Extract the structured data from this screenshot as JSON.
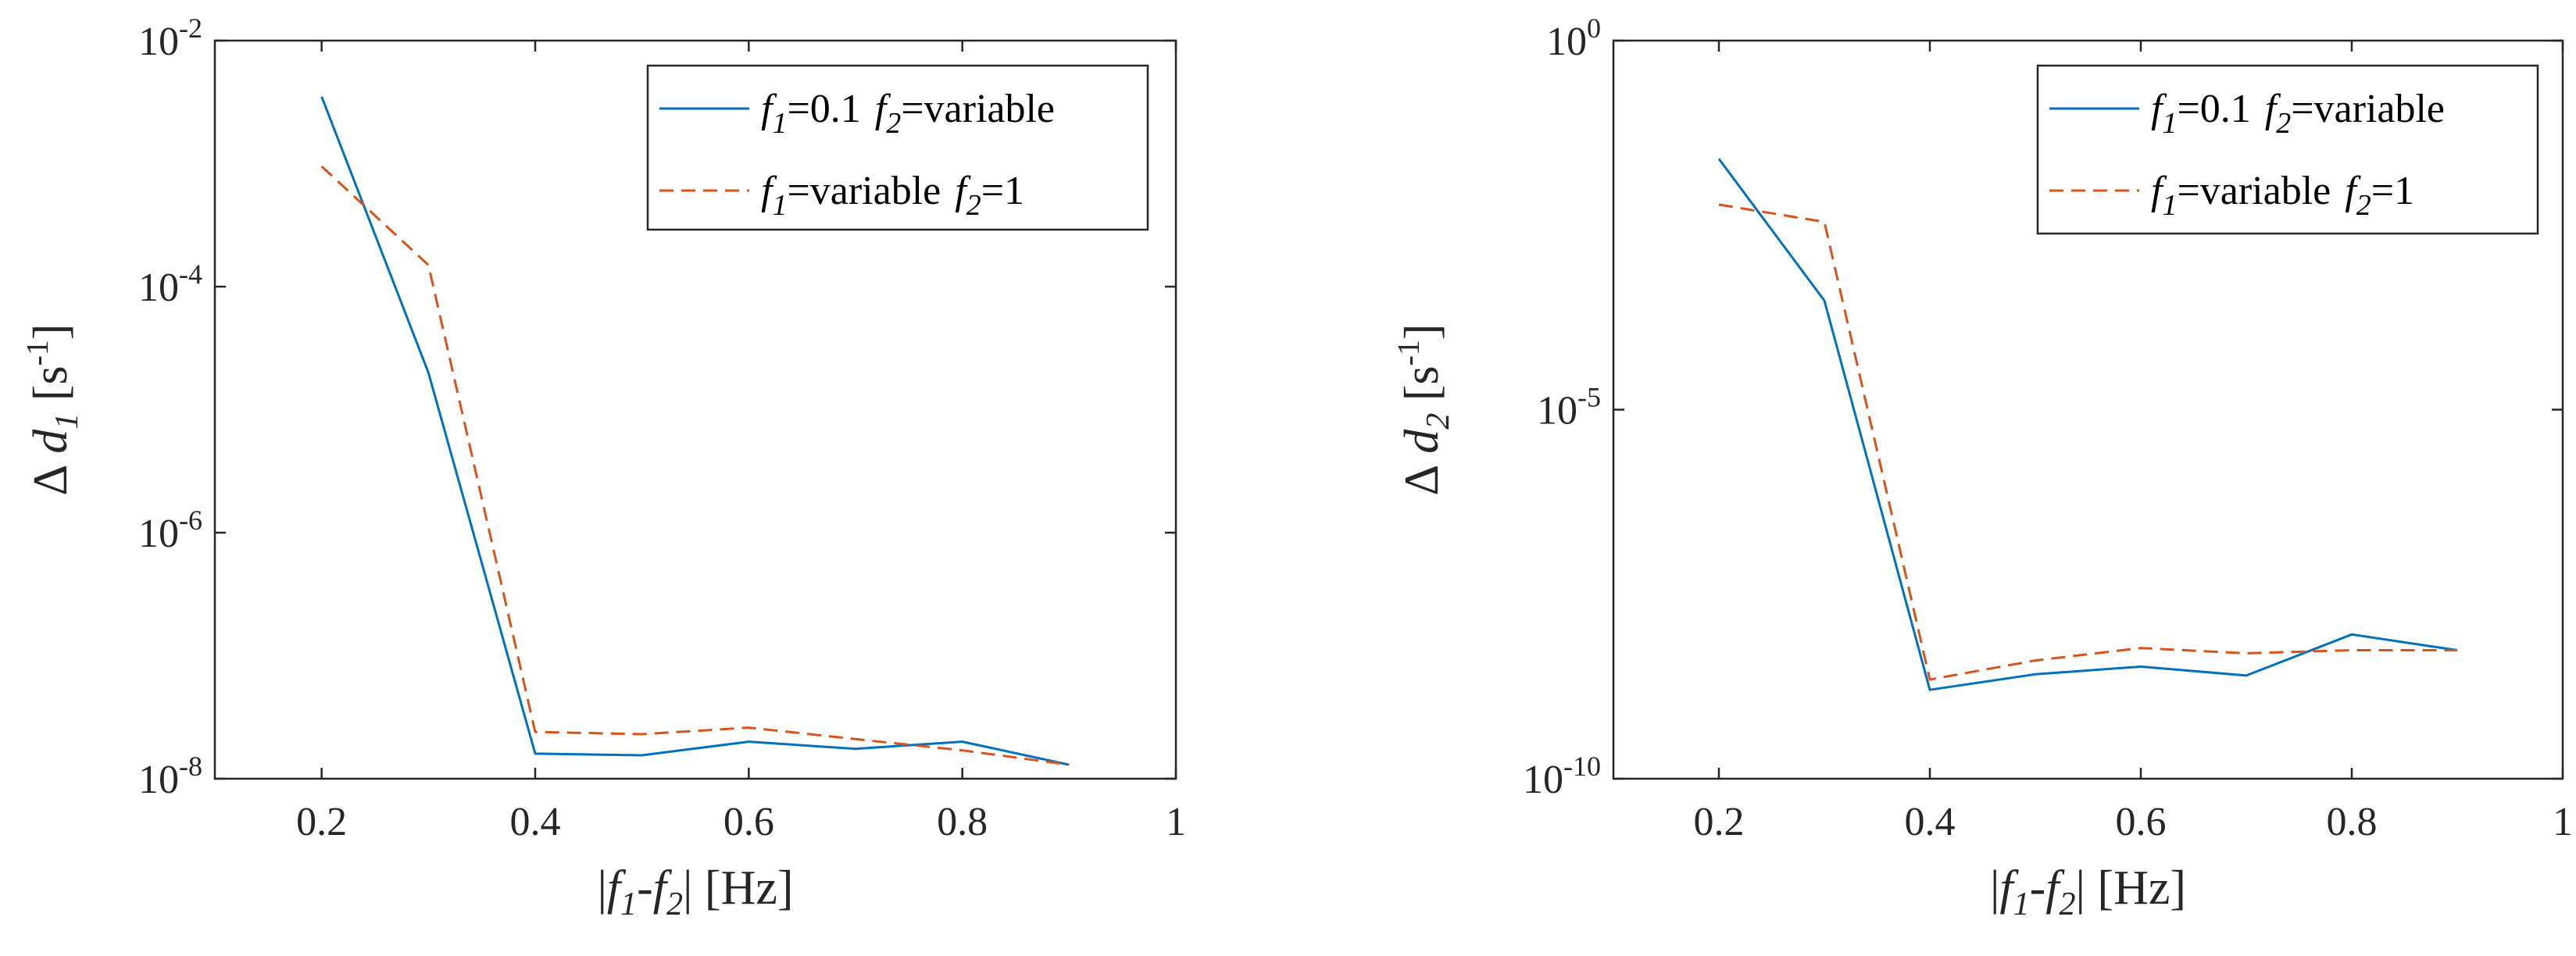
{
  "chart_data": [
    {
      "type": "line",
      "id": "left",
      "xscale": "linear",
      "yscale": "log",
      "xlim": [
        0.1,
        1
      ],
      "ylim": [
        1e-08,
        0.01
      ],
      "x_ticks": [
        0.2,
        0.4,
        0.6,
        0.8,
        1
      ],
      "x_tick_labels": [
        "0.2",
        "0.4",
        "0.6",
        "0.8",
        "1"
      ],
      "y_ticks": [
        {
          "value": 1e-08,
          "base": "10",
          "exp": "-8"
        },
        {
          "value": 1e-06,
          "base": "10",
          "exp": "-6"
        },
        {
          "value": 0.0001,
          "base": "10",
          "exp": "-4"
        },
        {
          "value": 0.01,
          "base": "10",
          "exp": "-2"
        }
      ],
      "xlabel": {
        "pre": "|",
        "f": "f",
        "sub1": "1",
        "mid": "-",
        "sub2": "2",
        "post": "| [Hz]"
      },
      "ylabel": {
        "delta": "Δ",
        "d": "d",
        "sub": "1",
        "unit_pre": " [s",
        "unit_exp": "-1",
        "unit_post": "]"
      },
      "legend": {
        "location": "top-right",
        "entries": [
          {
            "f1": "f",
            "f1_sub": "1",
            "f1_val": "=0.1",
            "f2": "f",
            "f2_sub": "2",
            "f2_val": "=variable"
          },
          {
            "f1": "f",
            "f1_sub": "1",
            "f1_val": "=variable",
            "f2": "f",
            "f2_sub": "2",
            "f2_val": "=1"
          }
        ]
      },
      "series": [
        {
          "name": "f1=0.1 f2=variable",
          "color": "#0072BD",
          "dash": "solid",
          "x": [
            0.2,
            0.3,
            0.4,
            0.5,
            0.6,
            0.7,
            0.8,
            0.9
          ],
          "y": [
            0.0035,
            2e-05,
            1.6e-08,
            1.55e-08,
            2e-08,
            1.75e-08,
            2e-08,
            1.3e-08
          ]
        },
        {
          "name": "f1=variable f2=1",
          "color": "#D95319",
          "dash": "dashed",
          "x": [
            0.2,
            0.3,
            0.4,
            0.5,
            0.6,
            0.7,
            0.8,
            0.9
          ],
          "y": [
            0.00095,
            0.00015,
            2.4e-08,
            2.3e-08,
            2.6e-08,
            2.1e-08,
            1.7e-08,
            1.3e-08
          ]
        }
      ]
    },
    {
      "type": "line",
      "id": "right",
      "xscale": "linear",
      "yscale": "log",
      "xlim": [
        0.1,
        1
      ],
      "ylim": [
        1e-10,
        1
      ],
      "x_ticks": [
        0.2,
        0.4,
        0.6,
        0.8,
        1
      ],
      "x_tick_labels": [
        "0.2",
        "0.4",
        "0.6",
        "0.8",
        "1"
      ],
      "y_ticks": [
        {
          "value": 1e-10,
          "base": "10",
          "exp": "-10"
        },
        {
          "value": 1e-05,
          "base": "10",
          "exp": "-5"
        },
        {
          "value": 1,
          "base": "10",
          "exp": "0"
        }
      ],
      "xlabel": {
        "pre": "|",
        "f": "f",
        "sub1": "1",
        "mid": "-",
        "sub2": "2",
        "post": "| [Hz]"
      },
      "ylabel": {
        "delta": "Δ",
        "d": "d",
        "sub": "2",
        "unit_pre": " [s",
        "unit_exp": "-1",
        "unit_post": "]"
      },
      "legend": {
        "location": "top-right",
        "entries": [
          {
            "f1": "f",
            "f1_sub": "1",
            "f1_val": "=0.1",
            "f2": "f",
            "f2_sub": "2",
            "f2_val": "=variable"
          },
          {
            "f1": "f",
            "f1_sub": "1",
            "f1_val": "=variable",
            "f2": "f",
            "f2_sub": "2",
            "f2_val": "=1"
          }
        ]
      },
      "series": [
        {
          "name": "f1=0.1 f2=variable",
          "color": "#0072BD",
          "dash": "solid",
          "x": [
            0.2,
            0.3,
            0.4,
            0.5,
            0.6,
            0.7,
            0.8,
            0.9
          ],
          "y": [
            0.025,
            0.0003,
            1.6e-09,
            2.6e-09,
            3.3e-09,
            2.5e-09,
            9e-09,
            5.5e-09
          ]
        },
        {
          "name": "f1=variable f2=1",
          "color": "#D95319",
          "dash": "dashed",
          "x": [
            0.2,
            0.3,
            0.4,
            0.5,
            0.6,
            0.7,
            0.8,
            0.9
          ],
          "y": [
            0.006,
            0.0035,
            2.2e-09,
            4e-09,
            5.9e-09,
            5e-09,
            5.5e-09,
            5.5e-09
          ]
        }
      ]
    }
  ]
}
